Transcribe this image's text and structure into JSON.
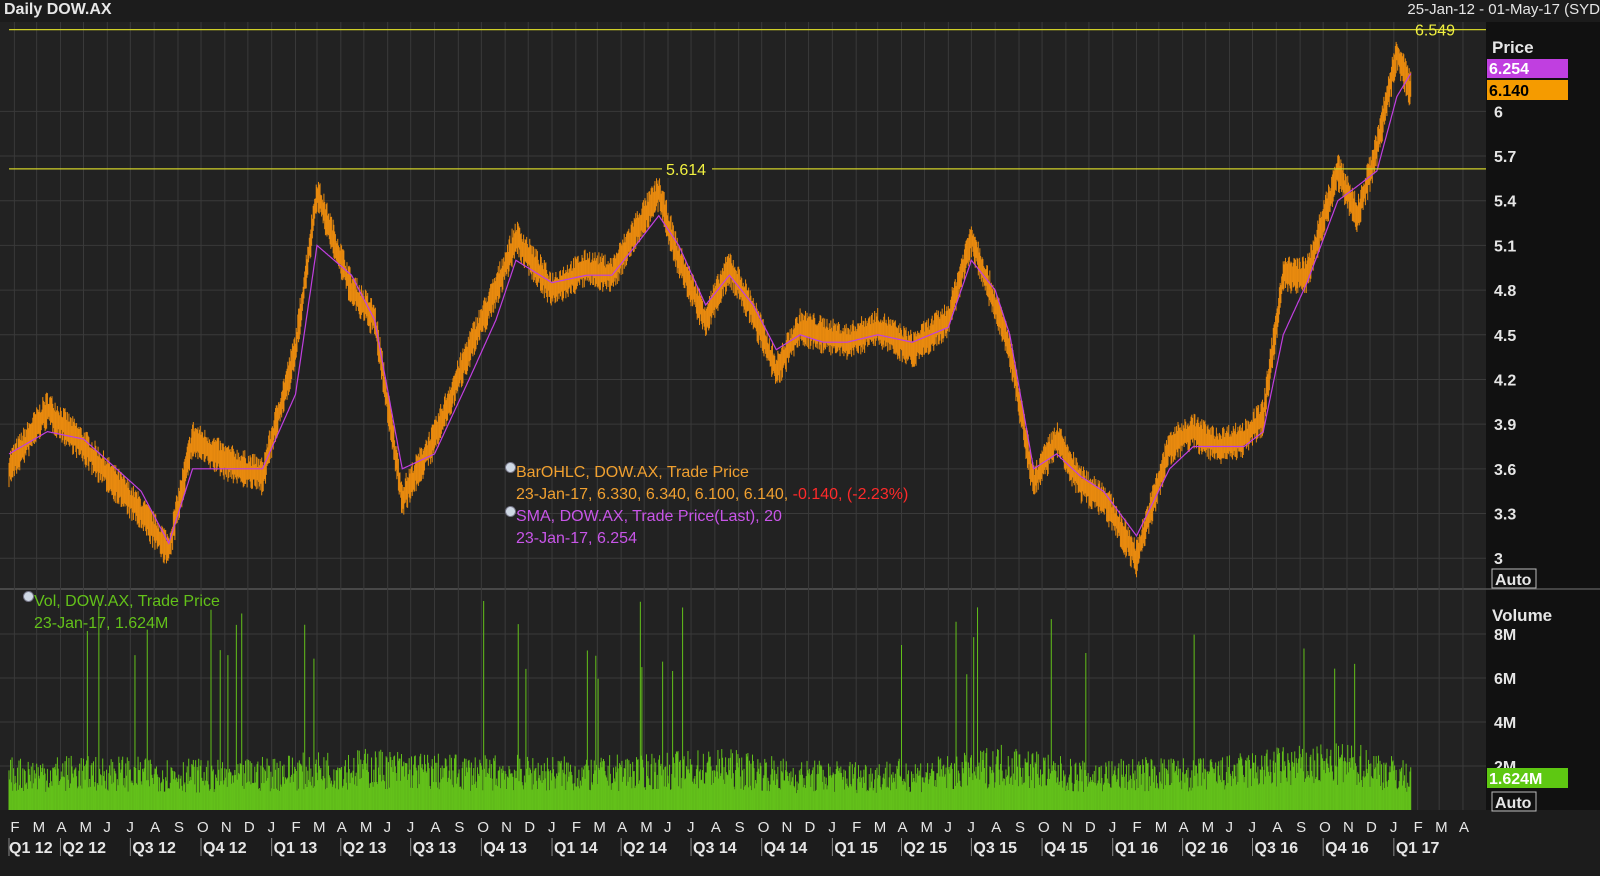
{
  "header": {
    "title": "Daily DOW.AX",
    "range": "25-Jan-12 - 01-May-17 (SYD"
  },
  "price_panel": {
    "label": "Price",
    "auto_label": "Auto",
    "sma_tag": "6.254",
    "last_tag": "6.140",
    "hline_high": "6.549",
    "hline_mid": "5.614",
    "ticks": [
      "6",
      "5.7",
      "5.4",
      "5.1",
      "4.8",
      "4.5",
      "4.2",
      "3.9",
      "3.6",
      "3.3",
      "3"
    ]
  },
  "volume_panel": {
    "label": "Volume",
    "auto_label": "Auto",
    "last_tag": "1.624M",
    "ticks": [
      "8M",
      "6M",
      "4M",
      "2M"
    ]
  },
  "legend": {
    "ohlc_line1": "BarOHLC, DOW.AX, Trade Price",
    "ohlc_line2": "23-Jan-17, 6.330, 6.340, 6.100, 6.140, ",
    "ohlc_change": "-0.140, (-2.23%)",
    "sma_line1": "SMA, DOW.AX, Trade Price(Last),  20",
    "sma_line2": "23-Jan-17, 6.254",
    "vol_line1": "Vol, DOW.AX, Trade Price",
    "vol_line2": "23-Jan-17, 1.624M"
  },
  "axis": {
    "months": [
      "F",
      "M",
      "A",
      "M",
      "J",
      "J",
      "A",
      "S",
      "O",
      "N",
      "D",
      "J",
      "F",
      "M",
      "A",
      "M",
      "J",
      "J",
      "A",
      "S",
      "O",
      "N",
      "D",
      "J",
      "F",
      "M",
      "A",
      "M",
      "J",
      "J",
      "A",
      "S",
      "O",
      "N",
      "D",
      "J",
      "F",
      "M",
      "A",
      "M",
      "J",
      "J",
      "A",
      "S",
      "O",
      "N",
      "D",
      "J",
      "F",
      "M",
      "A",
      "M",
      "J",
      "J",
      "A",
      "S",
      "O",
      "N",
      "D",
      "J",
      "F",
      "M",
      "A"
    ],
    "quarters": [
      "Q1 12",
      "Q2 12",
      "Q3 12",
      "Q4 12",
      "Q1 13",
      "Q2 13",
      "Q3 13",
      "Q4 13",
      "Q1 14",
      "Q2 14",
      "Q3 14",
      "Q4 14",
      "Q1 15",
      "Q2 15",
      "Q3 15",
      "Q4 15",
      "Q1 16",
      "Q2 16",
      "Q3 16",
      "Q4 16",
      "Q1 17"
    ]
  },
  "colors": {
    "bars": "#e98a0e",
    "sma": "#c03fe0",
    "volume": "#63c11a",
    "hline": "#cfcf28",
    "grid": "#3a3a3a",
    "change": "#ff2a2a",
    "axis_text": "#e6e6e6"
  },
  "chart_data": [
    {
      "type": "line",
      "title": "Daily DOW.AX",
      "xlabel": "",
      "ylabel": "Price",
      "ylim": [
        2.8,
        6.6
      ],
      "x": [
        "2012-01-25",
        "2012-03-15",
        "2012-05-01",
        "2012-07-15",
        "2012-08-20",
        "2012-09-20",
        "2012-11-01",
        "2012-12-20",
        "2013-02-01",
        "2013-03-01",
        "2013-04-15",
        "2013-05-15",
        "2013-06-20",
        "2013-08-01",
        "2013-09-15",
        "2013-10-20",
        "2013-11-15",
        "2014-01-01",
        "2014-02-15",
        "2014-03-20",
        "2014-04-20",
        "2014-05-20",
        "2014-06-15",
        "2014-07-20",
        "2014-08-20",
        "2014-09-20",
        "2014-10-20",
        "2014-11-20",
        "2014-12-20",
        "2015-01-20",
        "2015-03-01",
        "2015-04-15",
        "2015-06-01",
        "2015-07-01",
        "2015-08-01",
        "2015-08-20",
        "2015-09-20",
        "2015-10-20",
        "2015-11-20",
        "2015-12-20",
        "2016-02-01",
        "2016-03-15",
        "2016-04-15",
        "2016-05-15",
        "2016-06-20",
        "2016-07-15",
        "2016-08-10",
        "2016-09-10",
        "2016-10-20",
        "2016-11-15",
        "2016-12-10",
        "2017-01-05",
        "2017-01-23"
      ],
      "series": [
        {
          "name": "BarOHLC, DOW.AX, Trade Price",
          "values": [
            3.6,
            4.0,
            3.75,
            3.3,
            3.05,
            3.8,
            3.65,
            3.55,
            4.4,
            5.45,
            4.8,
            4.6,
            3.4,
            3.8,
            4.4,
            4.8,
            5.15,
            4.8,
            4.95,
            4.9,
            5.2,
            5.45,
            5.0,
            4.6,
            4.95,
            4.65,
            4.25,
            4.55,
            4.5,
            4.45,
            4.55,
            4.4,
            4.6,
            5.15,
            4.7,
            4.4,
            3.5,
            3.8,
            3.5,
            3.4,
            3.0,
            3.75,
            3.85,
            3.75,
            3.8,
            3.95,
            4.9,
            4.9,
            5.6,
            5.3,
            5.75,
            6.4,
            6.14
          ]
        },
        {
          "name": "SMA, DOW.AX, Trade Price(Last),  20",
          "values": [
            3.7,
            3.85,
            3.8,
            3.45,
            3.1,
            3.6,
            3.6,
            3.6,
            4.1,
            5.1,
            4.9,
            4.6,
            3.6,
            3.7,
            4.2,
            4.6,
            5.0,
            4.85,
            4.9,
            4.9,
            5.1,
            5.3,
            5.1,
            4.7,
            4.9,
            4.7,
            4.4,
            4.5,
            4.45,
            4.45,
            4.5,
            4.45,
            4.55,
            5.0,
            4.8,
            4.5,
            3.6,
            3.7,
            3.55,
            3.45,
            3.15,
            3.6,
            3.75,
            3.75,
            3.75,
            3.85,
            4.5,
            4.85,
            5.4,
            5.5,
            5.6,
            6.1,
            6.254
          ]
        }
      ]
    },
    {
      "type": "bar",
      "title": "",
      "xlabel": "",
      "ylabel": "Volume",
      "ylim": [
        0,
        10
      ],
      "x": [
        "2012-02",
        "2012-05",
        "2012-08",
        "2012-11",
        "2013-02",
        "2013-05",
        "2013-08",
        "2013-11",
        "2014-02",
        "2014-05",
        "2014-08",
        "2014-11",
        "2015-02",
        "2015-05",
        "2015-08",
        "2015-11",
        "2016-02",
        "2016-05",
        "2016-08",
        "2016-11",
        "2017-01-23"
      ],
      "series": [
        {
          "name": "Vol, DOW.AX, Trade Price",
          "values": [
            1.8,
            1.9,
            1.8,
            1.7,
            2.0,
            2.1,
            1.9,
            1.9,
            1.8,
            2.0,
            2.1,
            1.7,
            1.7,
            1.8,
            2.3,
            1.7,
            1.8,
            1.8,
            2.2,
            2.3,
            1.624
          ]
        }
      ]
    }
  ]
}
